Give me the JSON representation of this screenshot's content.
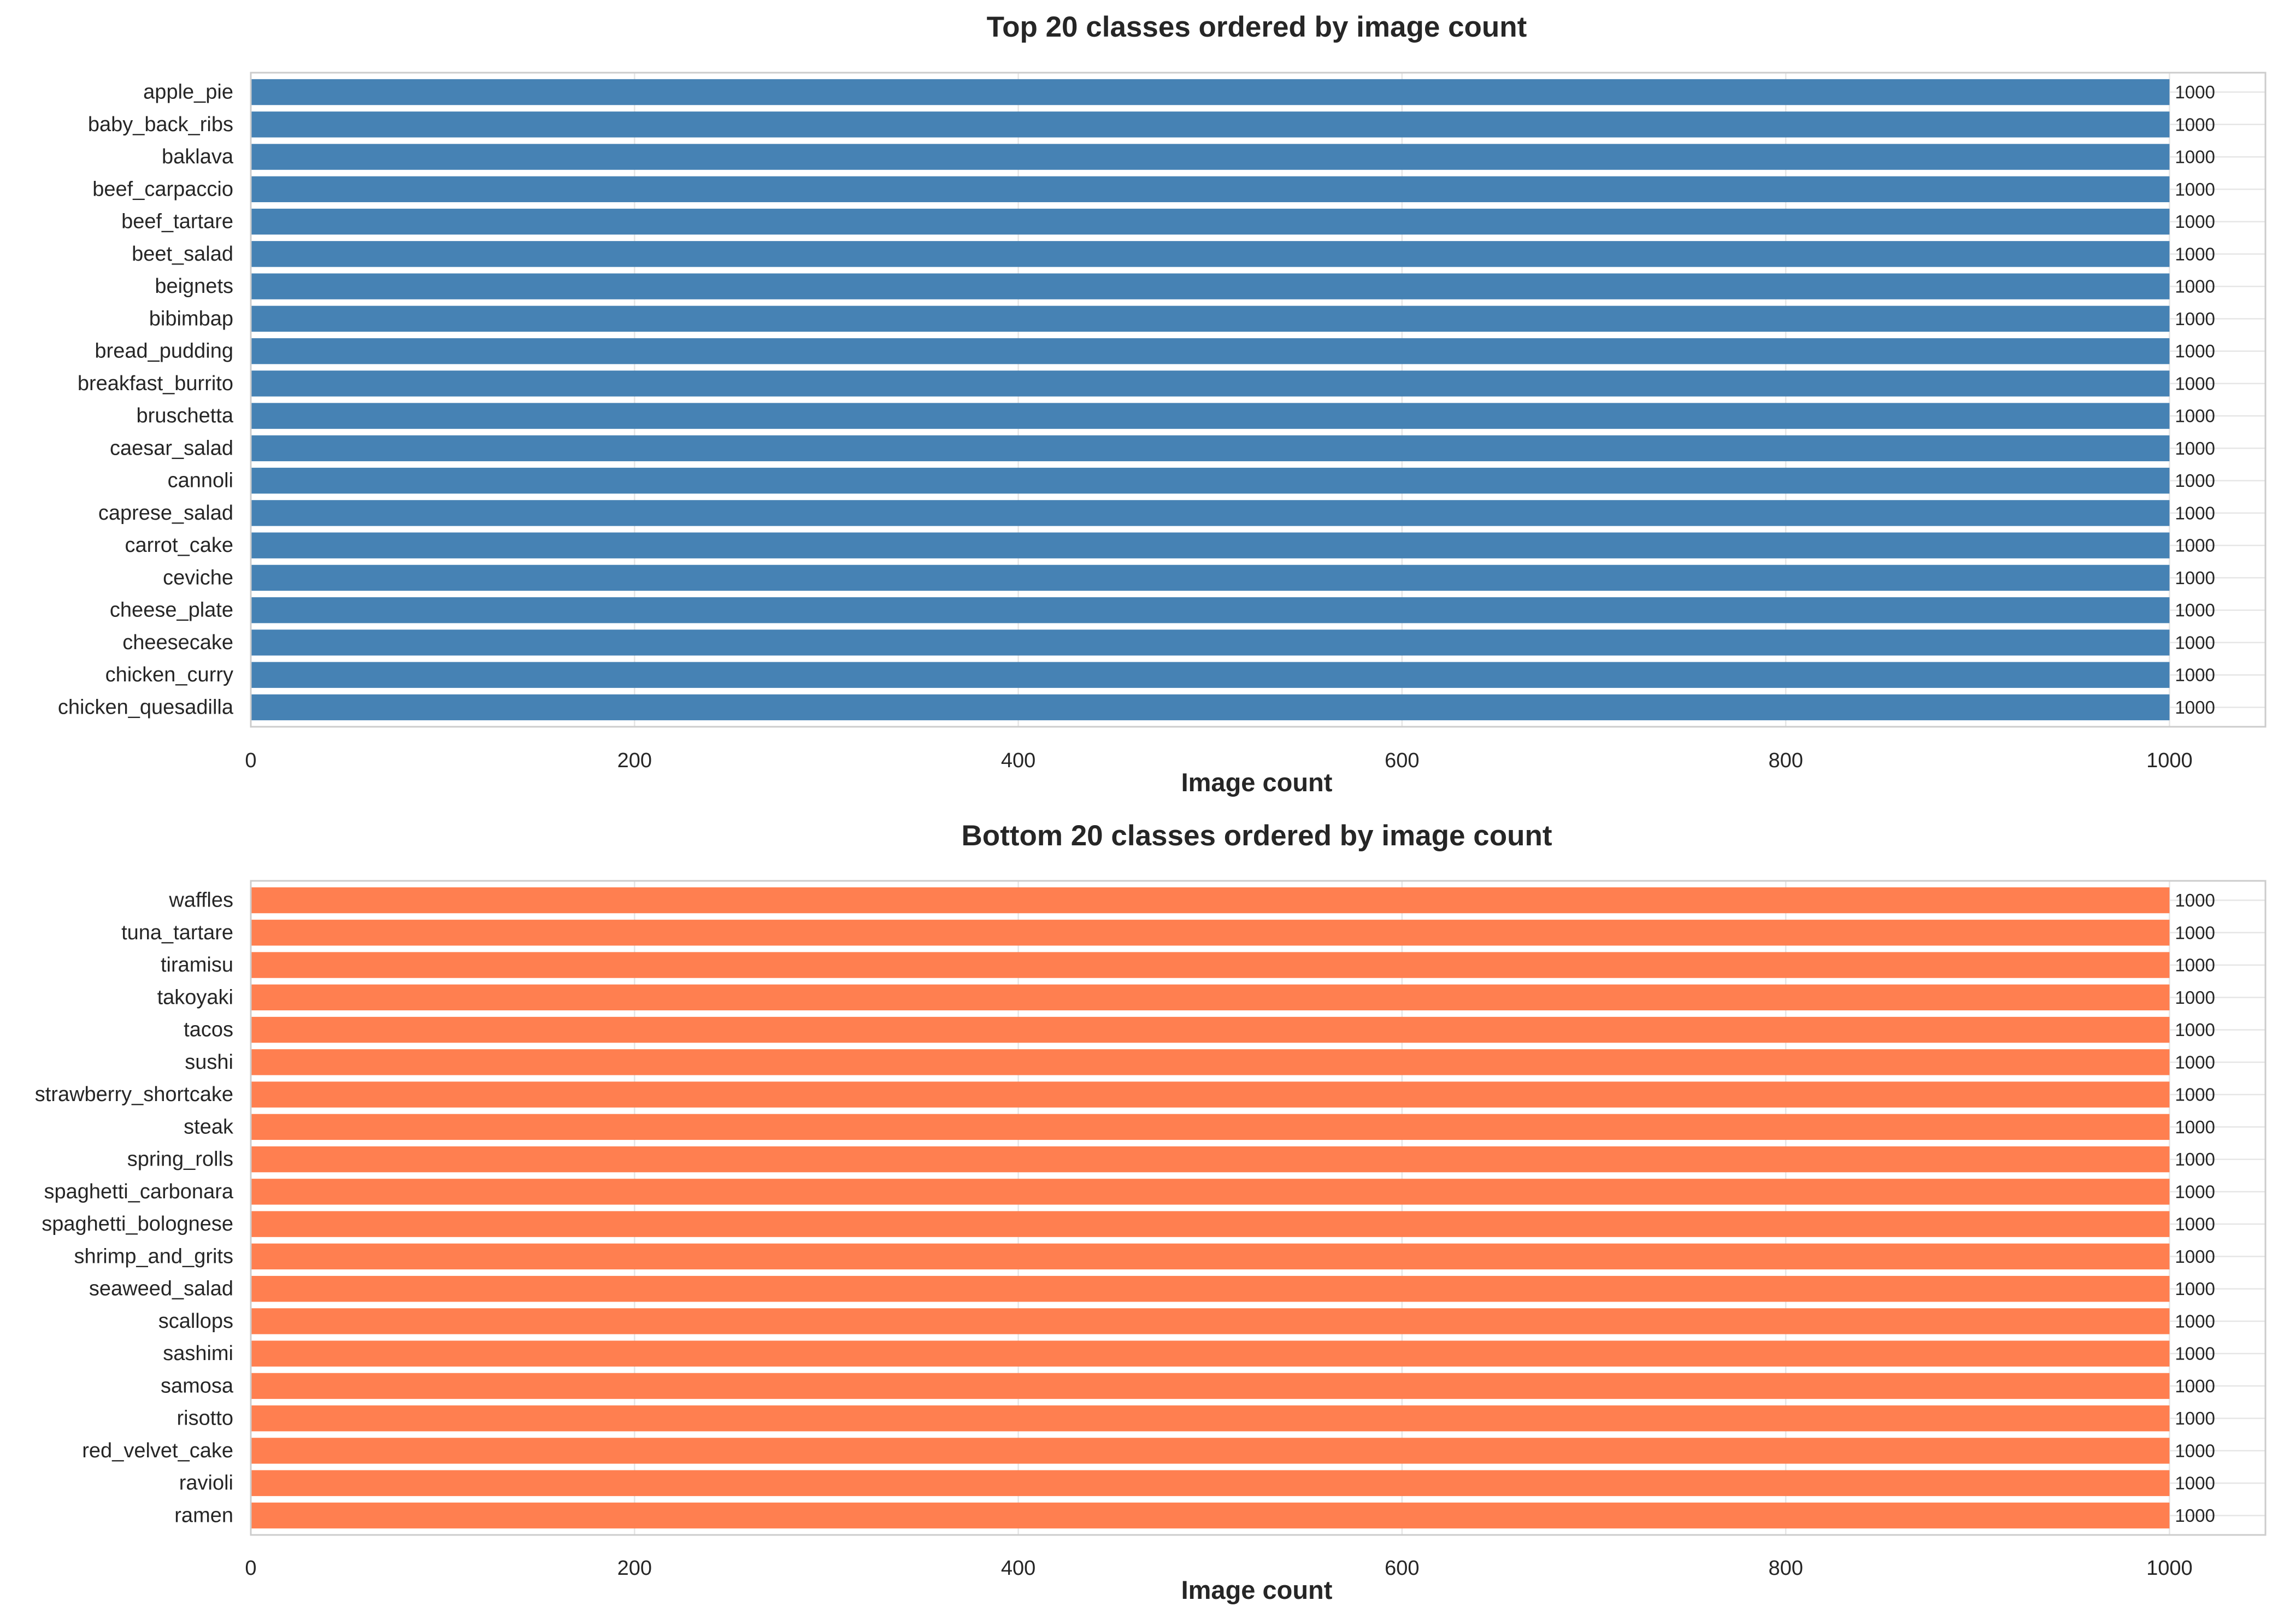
{
  "chart_data": [
    {
      "type": "bar",
      "orientation": "horizontal",
      "title": "Top 20 classes ordered by image count",
      "xlabel": "Image count",
      "ylabel": "",
      "xlim": [
        0,
        1050
      ],
      "xticks": [
        0,
        200,
        400,
        600,
        800,
        1000
      ],
      "grid": true,
      "color": "#4682b4",
      "categories": [
        "apple_pie",
        "baby_back_ribs",
        "baklava",
        "beef_carpaccio",
        "beef_tartare",
        "beet_salad",
        "beignets",
        "bibimbap",
        "bread_pudding",
        "breakfast_burrito",
        "bruschetta",
        "caesar_salad",
        "cannoli",
        "caprese_salad",
        "carrot_cake",
        "ceviche",
        "cheese_plate",
        "cheesecake",
        "chicken_curry",
        "chicken_quesadilla"
      ],
      "values": [
        1000,
        1000,
        1000,
        1000,
        1000,
        1000,
        1000,
        1000,
        1000,
        1000,
        1000,
        1000,
        1000,
        1000,
        1000,
        1000,
        1000,
        1000,
        1000,
        1000
      ],
      "data_labels": [
        "1000",
        "1000",
        "1000",
        "1000",
        "1000",
        "1000",
        "1000",
        "1000",
        "1000",
        "1000",
        "1000",
        "1000",
        "1000",
        "1000",
        "1000",
        "1000",
        "1000",
        "1000",
        "1000",
        "1000"
      ]
    },
    {
      "type": "bar",
      "orientation": "horizontal",
      "title": "Bottom 20 classes ordered by image count",
      "xlabel": "Image count",
      "ylabel": "",
      "xlim": [
        0,
        1050
      ],
      "xticks": [
        0,
        200,
        400,
        600,
        800,
        1000
      ],
      "grid": true,
      "color": "#ff7f50",
      "categories": [
        "waffles",
        "tuna_tartare",
        "tiramisu",
        "takoyaki",
        "tacos",
        "sushi",
        "strawberry_shortcake",
        "steak",
        "spring_rolls",
        "spaghetti_carbonara",
        "spaghetti_bolognese",
        "shrimp_and_grits",
        "seaweed_salad",
        "scallops",
        "sashimi",
        "samosa",
        "risotto",
        "red_velvet_cake",
        "ravioli",
        "ramen"
      ],
      "values": [
        1000,
        1000,
        1000,
        1000,
        1000,
        1000,
        1000,
        1000,
        1000,
        1000,
        1000,
        1000,
        1000,
        1000,
        1000,
        1000,
        1000,
        1000,
        1000,
        1000
      ],
      "data_labels": [
        "1000",
        "1000",
        "1000",
        "1000",
        "1000",
        "1000",
        "1000",
        "1000",
        "1000",
        "1000",
        "1000",
        "1000",
        "1000",
        "1000",
        "1000",
        "1000",
        "1000",
        "1000",
        "1000",
        "1000"
      ]
    }
  ]
}
